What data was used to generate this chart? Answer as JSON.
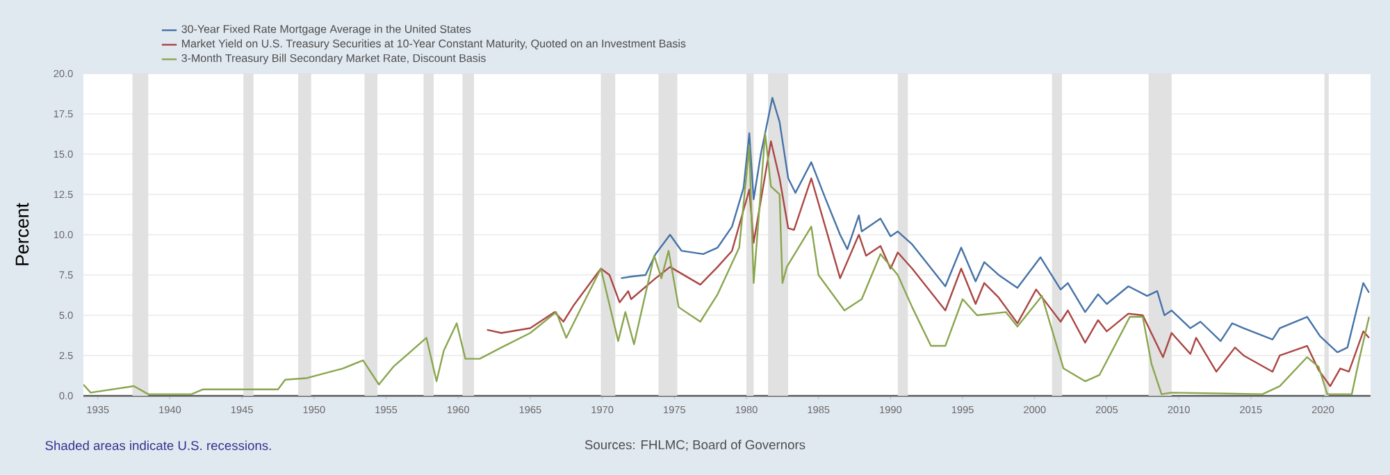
{
  "chart_data": {
    "type": "line",
    "ylabel": "Percent",
    "annotations": [
      "Shaded areas indicate U.S. recessions.",
      "Sources: FHLMC; Board of Governors"
    ],
    "xlim": [
      1934,
      2023.3
    ],
    "xticks": [
      1935,
      1940,
      1945,
      1950,
      1955,
      1960,
      1965,
      1970,
      1975,
      1980,
      1985,
      1990,
      1995,
      2000,
      2005,
      2010,
      2015,
      2020
    ],
    "ylim": [
      0,
      20
    ],
    "yticks": [
      {
        "value": 0,
        "label": "0.0"
      },
      {
        "value": 2.5,
        "label": "2.5"
      },
      {
        "value": 5,
        "label": "5.0"
      },
      {
        "value": 7.5,
        "label": "7.5"
      },
      {
        "value": 10,
        "label": "10.0"
      },
      {
        "value": 12.5,
        "label": "12.5"
      },
      {
        "value": 15,
        "label": "15.0"
      },
      {
        "value": 17.5,
        "label": "17.5"
      },
      {
        "value": 20,
        "label": "20.0"
      }
    ],
    "grid": "y",
    "legend": "top left",
    "bands": [
      {
        "axis": "x",
        "from": 1937.4,
        "to": 1938.5,
        "color": "#e1e1e1"
      },
      {
        "axis": "x",
        "from": 1945.1,
        "to": 1945.8,
        "color": "#e1e1e1"
      },
      {
        "axis": "x",
        "from": 1948.9,
        "to": 1949.8,
        "color": "#e1e1e1"
      },
      {
        "axis": "x",
        "from": 1953.5,
        "to": 1954.4,
        "color": "#e1e1e1"
      },
      {
        "axis": "x",
        "from": 1957.6,
        "to": 1958.3,
        "color": "#e1e1e1"
      },
      {
        "axis": "x",
        "from": 1960.3,
        "to": 1961.1,
        "color": "#e1e1e1"
      },
      {
        "axis": "x",
        "from": 1969.9,
        "to": 1970.9,
        "color": "#e1e1e1"
      },
      {
        "axis": "x",
        "from": 1973.9,
        "to": 1975.2,
        "color": "#e1e1e1"
      },
      {
        "axis": "x",
        "from": 1980.0,
        "to": 1980.5,
        "color": "#e1e1e1"
      },
      {
        "axis": "x",
        "from": 1981.5,
        "to": 1982.9,
        "color": "#e1e1e1"
      },
      {
        "axis": "x",
        "from": 1990.5,
        "to": 1991.2,
        "color": "#e1e1e1"
      },
      {
        "axis": "x",
        "from": 2001.2,
        "to": 2001.9,
        "color": "#e1e1e1"
      },
      {
        "axis": "x",
        "from": 2007.9,
        "to": 2009.5,
        "color": "#e1e1e1"
      },
      {
        "axis": "x",
        "from": 2020.1,
        "to": 2020.4,
        "color": "#e1e1e1"
      }
    ],
    "series": [
      {
        "name": "30-Year Fixed Rate Mortgage Average in the United States",
        "color": "#4572a7",
        "x": [
          1971.3,
          1972,
          1973,
          1973.7,
          1974.7,
          1975.5,
          1977,
          1978,
          1979,
          1979.8,
          1980.2,
          1980.5,
          1981,
          1981.8,
          1982.3,
          1982.9,
          1983.4,
          1984.5,
          1985.5,
          1986.5,
          1987,
          1987.8,
          1988,
          1989.3,
          1990,
          1990.5,
          1991.5,
          1993.8,
          1994.9,
          1995.9,
          1996.5,
          1997.5,
          1998.8,
          2000.4,
          2001.8,
          2002.3,
          2003.5,
          2004.4,
          2005,
          2006.5,
          2007.8,
          2008.5,
          2009,
          2009.5,
          2010.8,
          2011.5,
          2012.9,
          2013.7,
          2014.5,
          2016.5,
          2017,
          2018.9,
          2019.8,
          2021,
          2021.7,
          2022.3,
          2022.8,
          2023.2
        ],
        "values": [
          7.3,
          7.4,
          7.5,
          8.8,
          10.0,
          9.0,
          8.8,
          9.2,
          10.5,
          12.9,
          16.3,
          12.2,
          15.0,
          18.5,
          17.0,
          13.5,
          12.6,
          14.5,
          12.2,
          10.0,
          9.1,
          11.2,
          10.2,
          11.0,
          9.9,
          10.2,
          9.4,
          6.8,
          9.2,
          7.1,
          8.3,
          7.5,
          6.7,
          8.6,
          6.6,
          7.0,
          5.2,
          6.3,
          5.7,
          6.8,
          6.2,
          6.5,
          5.0,
          5.3,
          4.2,
          4.6,
          3.4,
          4.5,
          4.2,
          3.5,
          4.2,
          4.9,
          3.7,
          2.7,
          3.0,
          5.2,
          7.0,
          6.4
        ]
      },
      {
        "name": "Market Yield on U.S. Treasury Securities at 10-Year Constant Maturity, Quoted on an Investment Basis",
        "color": "#aa4643",
        "x": [
          1962,
          1963,
          1965,
          1966.7,
          1967.3,
          1968,
          1969.9,
          1970.5,
          1971.2,
          1971.8,
          1972,
          1973.7,
          1974.7,
          1976.8,
          1978,
          1979,
          1980.2,
          1980.5,
          1981.7,
          1982.3,
          1982.9,
          1983.3,
          1984.5,
          1985.5,
          1986.5,
          1987.8,
          1988.3,
          1989.3,
          1990,
          1990.5,
          1991.5,
          1993.8,
          1994.9,
          1995.9,
          1996.5,
          1997.5,
          1998.8,
          2000.1,
          2001.8,
          2002.3,
          2003.5,
          2004.4,
          2005,
          2006.5,
          2007.5,
          2008.9,
          2009.5,
          2010.8,
          2011.2,
          2012.6,
          2013.9,
          2014.5,
          2016.5,
          2017,
          2018.9,
          2019.7,
          2020.5,
          2021.2,
          2021.8,
          2022.8,
          2023.2
        ],
        "values": [
          4.1,
          3.9,
          4.2,
          5.2,
          4.6,
          5.6,
          7.9,
          7.5,
          5.8,
          6.5,
          6.0,
          7.3,
          8.0,
          6.9,
          8.0,
          9.0,
          12.8,
          9.5,
          15.8,
          13.5,
          10.4,
          10.3,
          13.5,
          10.4,
          7.3,
          10.0,
          8.7,
          9.3,
          7.9,
          8.9,
          7.9,
          5.3,
          7.9,
          5.7,
          7.0,
          6.1,
          4.5,
          6.6,
          4.6,
          5.3,
          3.3,
          4.7,
          4.0,
          5.1,
          5.0,
          2.4,
          3.9,
          2.6,
          3.6,
          1.5,
          3.0,
          2.5,
          1.5,
          2.5,
          3.1,
          1.6,
          0.6,
          1.7,
          1.5,
          4.0,
          3.6
        ]
      },
      {
        "name": "3-Month Treasury Bill Secondary Market Rate, Discount Basis",
        "color": "#89a54e",
        "x": [
          1934,
          1934.5,
          1937.5,
          1938.5,
          1941.5,
          1942.3,
          1947.5,
          1948,
          1949.5,
          1952,
          1953.4,
          1954.5,
          1955.5,
          1957.8,
          1958.5,
          1959,
          1959.9,
          1960.5,
          1961.5,
          1963,
          1965,
          1966.8,
          1967.5,
          1968.5,
          1969.9,
          1971.1,
          1971.6,
          1972.2,
          1973.6,
          1974.1,
          1974.6,
          1975.3,
          1976.8,
          1978,
          1979.5,
          1980.2,
          1980.5,
          1981.3,
          1981.7,
          1982.3,
          1982.5,
          1982.8,
          1984.5,
          1985,
          1986.8,
          1988,
          1989.3,
          1990.5,
          1991.5,
          1992.8,
          1993.8,
          1995,
          1996,
          1998,
          1998.8,
          2000.5,
          2001.3,
          2002,
          2003.5,
          2004.5,
          2006.6,
          2007.5,
          2008.1,
          2008.8,
          2009.5,
          2015.8,
          2017,
          2018.9,
          2019.7,
          2020.3,
          2022,
          2022.5,
          2023.2
        ],
        "values": [
          0.7,
          0.2,
          0.6,
          0.1,
          0.1,
          0.4,
          0.4,
          1.0,
          1.1,
          1.7,
          2.2,
          0.7,
          1.8,
          3.6,
          0.9,
          2.8,
          4.5,
          2.3,
          2.3,
          3.0,
          3.9,
          5.2,
          3.6,
          5.4,
          7.9,
          3.4,
          5.2,
          3.2,
          8.7,
          7.3,
          9.0,
          5.5,
          4.6,
          6.3,
          9.2,
          15.5,
          7.0,
          16.3,
          13.0,
          12.5,
          7.0,
          8.0,
          10.5,
          7.5,
          5.3,
          6.0,
          8.8,
          7.5,
          5.5,
          3.1,
          3.1,
          6.0,
          5.0,
          5.2,
          4.3,
          6.2,
          3.8,
          1.7,
          0.9,
          1.3,
          4.9,
          4.9,
          2.0,
          0.1,
          0.2,
          0.1,
          0.6,
          2.4,
          1.8,
          0.1,
          0.1,
          2.2,
          4.9
        ]
      }
    ]
  }
}
